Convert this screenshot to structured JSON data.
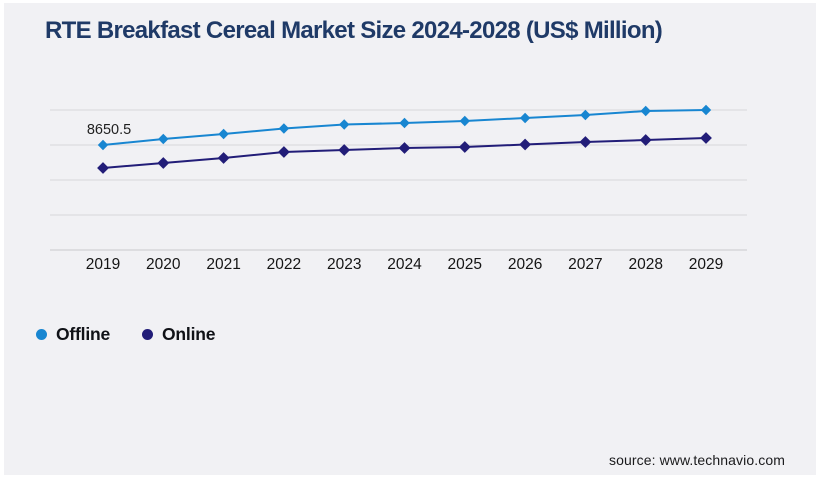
{
  "page": {
    "background_color": "#f1f1f4",
    "title": "RTE Breakfast Cereal Market Size 2024-2028 (US$ Million)",
    "title_color": "#1f3a67",
    "source": "source: www.technavio.com"
  },
  "chart_data": {
    "type": "line",
    "title": "RTE Breakfast Cereal Market Size 2024-2028 (US$ Million)",
    "categories": [
      "2019",
      "2020",
      "2021",
      "2022",
      "2023",
      "2024",
      "2025",
      "2026",
      "2027",
      "2028",
      "2029"
    ],
    "series": [
      {
        "name": "Offline",
        "color": "#1886d1",
        "marker": "diamond",
        "values": [
          8650.5,
          9164.7,
          9593.2,
          10064.6,
          10407.4,
          10536.0,
          10707.3,
          10964.4,
          11221.5,
          11564.3,
          11650.0
        ]
      },
      {
        "name": "Online",
        "color": "#221d78",
        "marker": "diamond",
        "values": [
          6679.4,
          7107.9,
          7536.4,
          8050.6,
          8222.0,
          8393.4,
          8479.1,
          8693.4,
          8907.6,
          9079.0,
          9250.4
        ]
      }
    ],
    "data_labels": [
      {
        "series": "Offline",
        "category": "2019",
        "text": "8650.5"
      }
    ],
    "grid": "horizontal",
    "gridline_color": "#d7d7da",
    "axis_line_color": "#c9c9cc",
    "x_tick_color": "#151515",
    "y_axis_labels_visible": false,
    "legend_position": "bottom-left"
  }
}
